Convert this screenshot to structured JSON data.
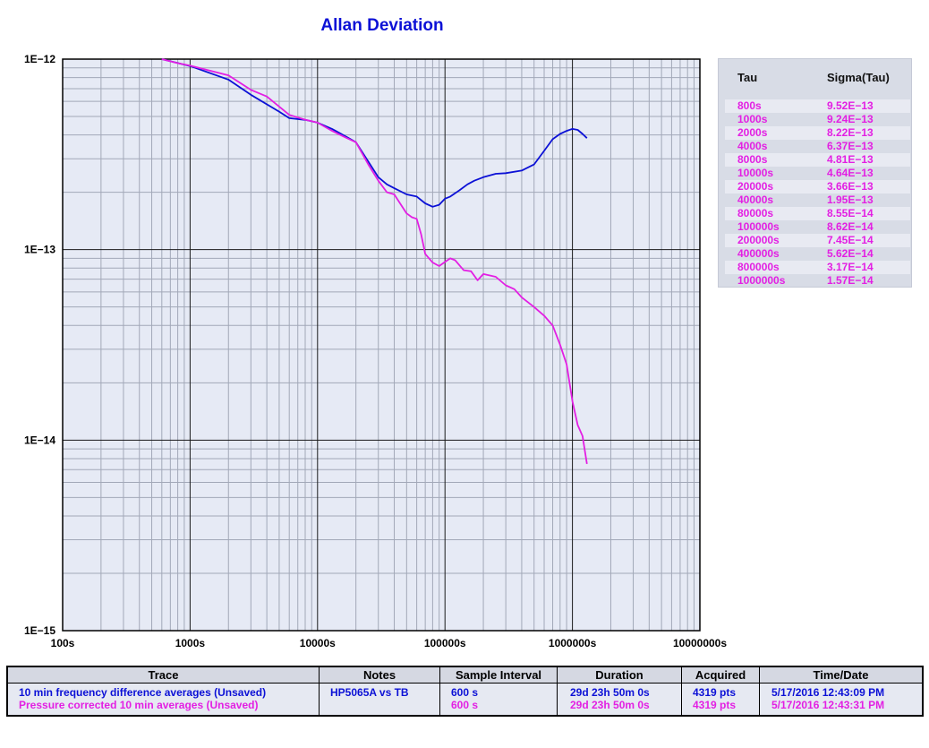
{
  "chart_data": {
    "type": "line",
    "title": "Allan Deviation",
    "xlabel": "",
    "ylabel": "",
    "x_scale": "log",
    "y_scale": "log",
    "xlim": [
      100,
      10000000
    ],
    "ylim": [
      1e-15,
      1e-12
    ],
    "x_tick_labels": [
      "100s",
      "1000s",
      "10000s",
      "100000s",
      "1000000s",
      "10000000s"
    ],
    "y_tick_labels": [
      "1E−15",
      "1E−14",
      "1E−13",
      "1E−12"
    ],
    "grid": true,
    "series": [
      {
        "name": "10 min frequency difference averages (Unsaved)",
        "color": "#0c11d6",
        "x": [
          600,
          1000,
          2000,
          3000,
          5000,
          6000,
          8000,
          10000,
          13000,
          17000,
          20000,
          25000,
          30000,
          35000,
          40000,
          50000,
          60000,
          70000,
          80000,
          90000,
          100000,
          110000,
          130000,
          150000,
          170000,
          200000,
          250000,
          300000,
          400000,
          500000,
          600000,
          700000,
          800000,
          900000,
          1000000,
          1100000,
          1200000,
          1300000
        ],
        "y": [
          1e-12,
          9.2e-13,
          7.8e-13,
          6.5e-13,
          5.3e-13,
          4.9e-13,
          4.8e-13,
          4.64e-13,
          4.3e-13,
          3.9e-13,
          3.66e-13,
          2.9e-13,
          2.4e-13,
          2.2e-13,
          2.1e-13,
          1.95e-13,
          1.9e-13,
          1.75e-13,
          1.68e-13,
          1.72e-13,
          1.85e-13,
          1.9e-13,
          2.05e-13,
          2.2e-13,
          2.3e-13,
          2.4e-13,
          2.5e-13,
          2.52e-13,
          2.6e-13,
          2.8e-13,
          3.3e-13,
          3.8e-13,
          4.05e-13,
          4.2e-13,
          4.3e-13,
          4.25e-13,
          4.05e-13,
          3.85e-13
        ]
      },
      {
        "name": "Pressure corrected 10 min averages (Unsaved)",
        "color": "#e31fe3",
        "x": [
          600,
          800,
          1000,
          2000,
          3000,
          4000,
          6000,
          8000,
          10000,
          13000,
          17000,
          20000,
          25000,
          30000,
          35000,
          40000,
          50000,
          55000,
          60000,
          65000,
          70000,
          80000,
          90000,
          100000,
          110000,
          120000,
          140000,
          160000,
          180000,
          200000,
          250000,
          300000,
          350000,
          400000,
          500000,
          600000,
          700000,
          800000,
          900000,
          1000000,
          1100000,
          1200000,
          1300000
        ],
        "y": [
          1e-12,
          9.52e-13,
          9.24e-13,
          8.22e-13,
          6.9e-13,
          6.37e-13,
          5.1e-13,
          4.81e-13,
          4.64e-13,
          4.2e-13,
          3.85e-13,
          3.66e-13,
          2.8e-13,
          2.3e-13,
          2e-13,
          1.95e-13,
          1.55e-13,
          1.48e-13,
          1.45e-13,
          1.2e-13,
          9.5e-14,
          8.55e-14,
          8.2e-14,
          8.62e-14,
          9e-14,
          8.8e-14,
          7.8e-14,
          7.7e-14,
          6.9e-14,
          7.45e-14,
          7.2e-14,
          6.5e-14,
          6.2e-14,
          5.62e-14,
          5e-14,
          4.5e-14,
          4e-14,
          3.17e-14,
          2.5e-14,
          1.6e-14,
          1.2e-14,
          1.05e-14,
          7.5e-15
        ]
      }
    ]
  },
  "tau_table": {
    "header_tau": "Tau",
    "header_sigma": "Sigma(Tau)",
    "rows": [
      {
        "tau": "800s",
        "sigma": "9.52E−13"
      },
      {
        "tau": "1000s",
        "sigma": "9.24E−13"
      },
      {
        "tau": "2000s",
        "sigma": "8.22E−13"
      },
      {
        "tau": "4000s",
        "sigma": "6.37E−13"
      },
      {
        "tau": "8000s",
        "sigma": "4.81E−13"
      },
      {
        "tau": "10000s",
        "sigma": "4.64E−13"
      },
      {
        "tau": "20000s",
        "sigma": "3.66E−13"
      },
      {
        "tau": "40000s",
        "sigma": "1.95E−13"
      },
      {
        "tau": "80000s",
        "sigma": "8.55E−14"
      },
      {
        "tau": "100000s",
        "sigma": "8.62E−14"
      },
      {
        "tau": "200000s",
        "sigma": "7.45E−14"
      },
      {
        "tau": "400000s",
        "sigma": "5.62E−14"
      },
      {
        "tau": "800000s",
        "sigma": "3.17E−14"
      },
      {
        "tau": "1000000s",
        "sigma": "1.57E−14"
      }
    ],
    "text_color": "#e31fe3"
  },
  "trace_table": {
    "headers": [
      "Trace",
      "Notes",
      "Sample Interval",
      "Duration",
      "Acquired",
      "Time/Date"
    ],
    "rows": [
      {
        "trace": "10 min frequency difference averages (Unsaved)",
        "notes": "HP5065A vs TB",
        "interval": "600 s",
        "duration": "29d 23h 50m 0s",
        "acquired": "4319 pts",
        "time": "5/17/2016 12:43:09 PM",
        "color": "#0c11d6"
      },
      {
        "trace": "Pressure corrected 10 min averages (Unsaved)",
        "notes": "",
        "interval": "600 s",
        "duration": "29d 23h 50m 0s",
        "acquired": "4319 pts",
        "time": "5/17/2016 12:43:31 PM",
        "color": "#e31fe3"
      }
    ]
  }
}
